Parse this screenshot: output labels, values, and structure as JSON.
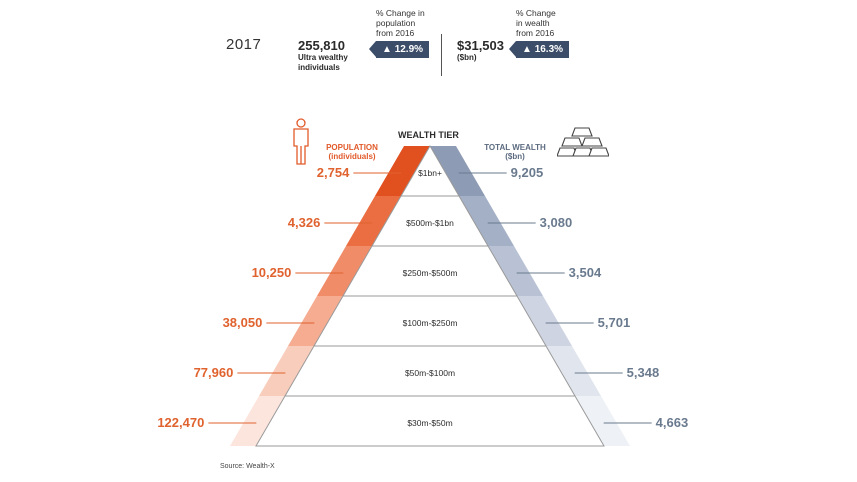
{
  "header": {
    "year": "2017",
    "population_value": "255,810",
    "population_caption_1": "Ultra wealthy",
    "population_caption_2": "individuals",
    "pop_change_note_1": "% Change in",
    "pop_change_note_2": "population",
    "pop_change_note_3": "from 2016",
    "pop_change_value": "12.9%",
    "wealth_value": "$31,503",
    "wealth_unit": "($bn)",
    "wealth_change_note_1": "% Change",
    "wealth_change_note_2": "in wealth",
    "wealth_change_note_3": "from 2016",
    "wealth_change_value": "16.3%"
  },
  "chart_headers": {
    "center": "WEALTH TIER",
    "population_1": "POPULATION",
    "population_2": "(individuals)",
    "wealth_1": "TOTAL WEALTH",
    "wealth_2": "($bn)"
  },
  "icons": {
    "person": "person-icon",
    "gold_bars": "gold-bars-icon",
    "up_arrow": "up-arrow-icon"
  },
  "colors": {
    "population_top": "#e1501f",
    "wealth_top": "#8d9bb5",
    "badge": "#3b4d68",
    "population_text": "#e0622e",
    "wealth_text": "#6a7a8e"
  },
  "chart_data": {
    "type": "table",
    "tiers": [
      "$1bn+",
      "$500m-$1bn",
      "$250m-$500m",
      "$100m-$250m",
      "$50m-$100m",
      "$30m-$50m"
    ],
    "series": [
      {
        "name": "POPULATION (individuals)",
        "values": [
          2754,
          4326,
          10250,
          38050,
          77960,
          122470
        ],
        "labels": [
          "2,754",
          "4,326",
          "10,250",
          "38,050",
          "77,960",
          "122,470"
        ]
      },
      {
        "name": "TOTAL WEALTH ($bn)",
        "values": [
          9205,
          3080,
          3504,
          5701,
          5348,
          4663
        ],
        "labels": [
          "9,205",
          "3,080",
          "3,504",
          "5,701",
          "5,348",
          "4,663"
        ]
      }
    ]
  },
  "source": "Source: Wealth-X"
}
